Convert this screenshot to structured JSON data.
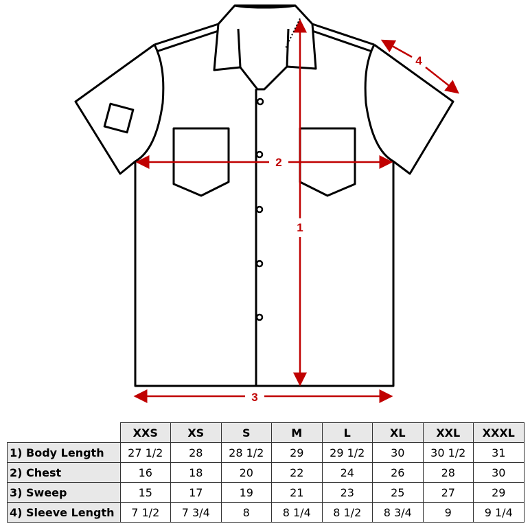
{
  "diagram": {
    "accent_color": "#c00000",
    "measure_labels": [
      "1",
      "2",
      "3",
      "4"
    ]
  },
  "table": {
    "sizes": [
      "XXS",
      "XS",
      "S",
      "M",
      "L",
      "XL",
      "XXL",
      "XXXL"
    ],
    "rows": [
      {
        "label": "1) Body Length",
        "values": [
          "27 1/2",
          "28",
          "28 1/2",
          "29",
          "29 1/2",
          "30",
          "30 1/2",
          "31"
        ]
      },
      {
        "label": "2) Chest",
        "values": [
          "16",
          "18",
          "20",
          "22",
          "24",
          "26",
          "28",
          "30"
        ]
      },
      {
        "label": "3) Sweep",
        "values": [
          "15",
          "17",
          "19",
          "21",
          "23",
          "25",
          "27",
          "29"
        ]
      },
      {
        "label": "4) Sleeve Length",
        "values": [
          "7 1/2",
          "7 3/4",
          "8",
          "8 1/4",
          "8 1/2",
          "8 3/4",
          "9",
          "9 1/4"
        ]
      }
    ]
  }
}
